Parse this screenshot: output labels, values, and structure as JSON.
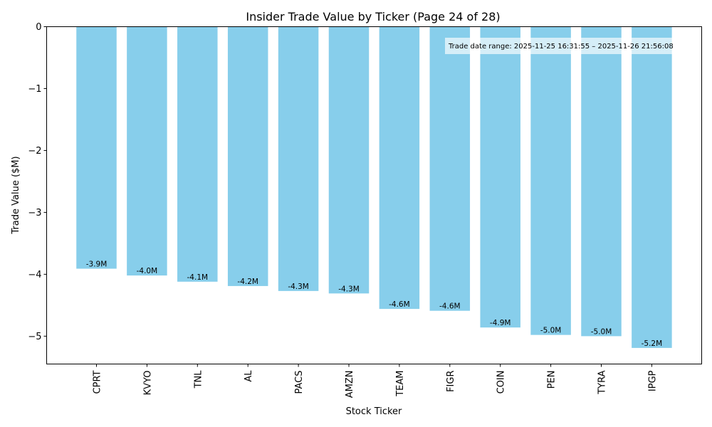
{
  "chart_data": {
    "type": "bar",
    "title": "Insider Trade Value by Ticker (Page 24 of 28)",
    "xlabel": "Stock Ticker",
    "ylabel": "Trade Value ($M)",
    "categories": [
      "CPRT",
      "KVYO",
      "TNL",
      "AL",
      "PACS",
      "AMZN",
      "TEAM",
      "FIGR",
      "COIN",
      "PEN",
      "TYRA",
      "IPGP"
    ],
    "values": [
      -3.91,
      -4.02,
      -4.12,
      -4.19,
      -4.27,
      -4.31,
      -4.56,
      -4.59,
      -4.86,
      -4.98,
      -5.0,
      -5.19
    ],
    "data_labels": [
      "-3.9M",
      "-4.0M",
      "-4.1M",
      "-4.2M",
      "-4.3M",
      "-4.3M",
      "-4.6M",
      "-4.6M",
      "-4.9M",
      "-5.0M",
      "-5.0M",
      "-5.2M"
    ],
    "ylim": [
      -5.45,
      0
    ],
    "yticks": [
      0,
      -1,
      -2,
      -3,
      -4,
      -5
    ],
    "ytick_labels": [
      "0",
      "−1",
      "−2",
      "−3",
      "−4",
      "−5"
    ],
    "bar_color": "#87CEEB",
    "grid": false,
    "annotation": "Trade date range: 2025-11-25 16:31:55 – 2025-11-26 21:56:08",
    "annotation_position": "top-right"
  }
}
